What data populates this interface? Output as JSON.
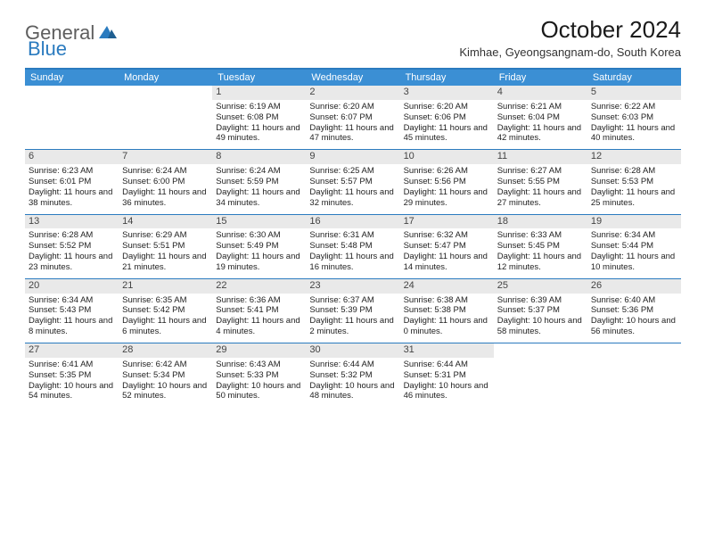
{
  "logo": {
    "part1": "General",
    "part2": "Blue"
  },
  "title": "October 2024",
  "subtitle": "Kimhae, Gyeongsangnam-do, South Korea",
  "colors": {
    "header_bg": "#3b8fd4",
    "header_text": "#ffffff",
    "divider": "#2b7bbf",
    "daynum_bg": "#e9e9e9",
    "logo_gray": "#5e5e5e",
    "logo_blue": "#2b7bbf",
    "background": "#ffffff"
  },
  "day_names": [
    "Sunday",
    "Monday",
    "Tuesday",
    "Wednesday",
    "Thursday",
    "Friday",
    "Saturday"
  ],
  "weeks": [
    [
      {
        "n": "",
        "sr": "",
        "ss": "",
        "dl": ""
      },
      {
        "n": "",
        "sr": "",
        "ss": "",
        "dl": ""
      },
      {
        "n": "1",
        "sr": "6:19 AM",
        "ss": "6:08 PM",
        "dl": "11 hours and 49 minutes."
      },
      {
        "n": "2",
        "sr": "6:20 AM",
        "ss": "6:07 PM",
        "dl": "11 hours and 47 minutes."
      },
      {
        "n": "3",
        "sr": "6:20 AM",
        "ss": "6:06 PM",
        "dl": "11 hours and 45 minutes."
      },
      {
        "n": "4",
        "sr": "6:21 AM",
        "ss": "6:04 PM",
        "dl": "11 hours and 42 minutes."
      },
      {
        "n": "5",
        "sr": "6:22 AM",
        "ss": "6:03 PM",
        "dl": "11 hours and 40 minutes."
      }
    ],
    [
      {
        "n": "6",
        "sr": "6:23 AM",
        "ss": "6:01 PM",
        "dl": "11 hours and 38 minutes."
      },
      {
        "n": "7",
        "sr": "6:24 AM",
        "ss": "6:00 PM",
        "dl": "11 hours and 36 minutes."
      },
      {
        "n": "8",
        "sr": "6:24 AM",
        "ss": "5:59 PM",
        "dl": "11 hours and 34 minutes."
      },
      {
        "n": "9",
        "sr": "6:25 AM",
        "ss": "5:57 PM",
        "dl": "11 hours and 32 minutes."
      },
      {
        "n": "10",
        "sr": "6:26 AM",
        "ss": "5:56 PM",
        "dl": "11 hours and 29 minutes."
      },
      {
        "n": "11",
        "sr": "6:27 AM",
        "ss": "5:55 PM",
        "dl": "11 hours and 27 minutes."
      },
      {
        "n": "12",
        "sr": "6:28 AM",
        "ss": "5:53 PM",
        "dl": "11 hours and 25 minutes."
      }
    ],
    [
      {
        "n": "13",
        "sr": "6:28 AM",
        "ss": "5:52 PM",
        "dl": "11 hours and 23 minutes."
      },
      {
        "n": "14",
        "sr": "6:29 AM",
        "ss": "5:51 PM",
        "dl": "11 hours and 21 minutes."
      },
      {
        "n": "15",
        "sr": "6:30 AM",
        "ss": "5:49 PM",
        "dl": "11 hours and 19 minutes."
      },
      {
        "n": "16",
        "sr": "6:31 AM",
        "ss": "5:48 PM",
        "dl": "11 hours and 16 minutes."
      },
      {
        "n": "17",
        "sr": "6:32 AM",
        "ss": "5:47 PM",
        "dl": "11 hours and 14 minutes."
      },
      {
        "n": "18",
        "sr": "6:33 AM",
        "ss": "5:45 PM",
        "dl": "11 hours and 12 minutes."
      },
      {
        "n": "19",
        "sr": "6:34 AM",
        "ss": "5:44 PM",
        "dl": "11 hours and 10 minutes."
      }
    ],
    [
      {
        "n": "20",
        "sr": "6:34 AM",
        "ss": "5:43 PM",
        "dl": "11 hours and 8 minutes."
      },
      {
        "n": "21",
        "sr": "6:35 AM",
        "ss": "5:42 PM",
        "dl": "11 hours and 6 minutes."
      },
      {
        "n": "22",
        "sr": "6:36 AM",
        "ss": "5:41 PM",
        "dl": "11 hours and 4 minutes."
      },
      {
        "n": "23",
        "sr": "6:37 AM",
        "ss": "5:39 PM",
        "dl": "11 hours and 2 minutes."
      },
      {
        "n": "24",
        "sr": "6:38 AM",
        "ss": "5:38 PM",
        "dl": "11 hours and 0 minutes."
      },
      {
        "n": "25",
        "sr": "6:39 AM",
        "ss": "5:37 PM",
        "dl": "10 hours and 58 minutes."
      },
      {
        "n": "26",
        "sr": "6:40 AM",
        "ss": "5:36 PM",
        "dl": "10 hours and 56 minutes."
      }
    ],
    [
      {
        "n": "27",
        "sr": "6:41 AM",
        "ss": "5:35 PM",
        "dl": "10 hours and 54 minutes."
      },
      {
        "n": "28",
        "sr": "6:42 AM",
        "ss": "5:34 PM",
        "dl": "10 hours and 52 minutes."
      },
      {
        "n": "29",
        "sr": "6:43 AM",
        "ss": "5:33 PM",
        "dl": "10 hours and 50 minutes."
      },
      {
        "n": "30",
        "sr": "6:44 AM",
        "ss": "5:32 PM",
        "dl": "10 hours and 48 minutes."
      },
      {
        "n": "31",
        "sr": "6:44 AM",
        "ss": "5:31 PM",
        "dl": "10 hours and 46 minutes."
      },
      {
        "n": "",
        "sr": "",
        "ss": "",
        "dl": ""
      },
      {
        "n": "",
        "sr": "",
        "ss": "",
        "dl": ""
      }
    ]
  ],
  "labels": {
    "sunrise": "Sunrise:",
    "sunset": "Sunset:",
    "daylight": "Daylight:"
  }
}
